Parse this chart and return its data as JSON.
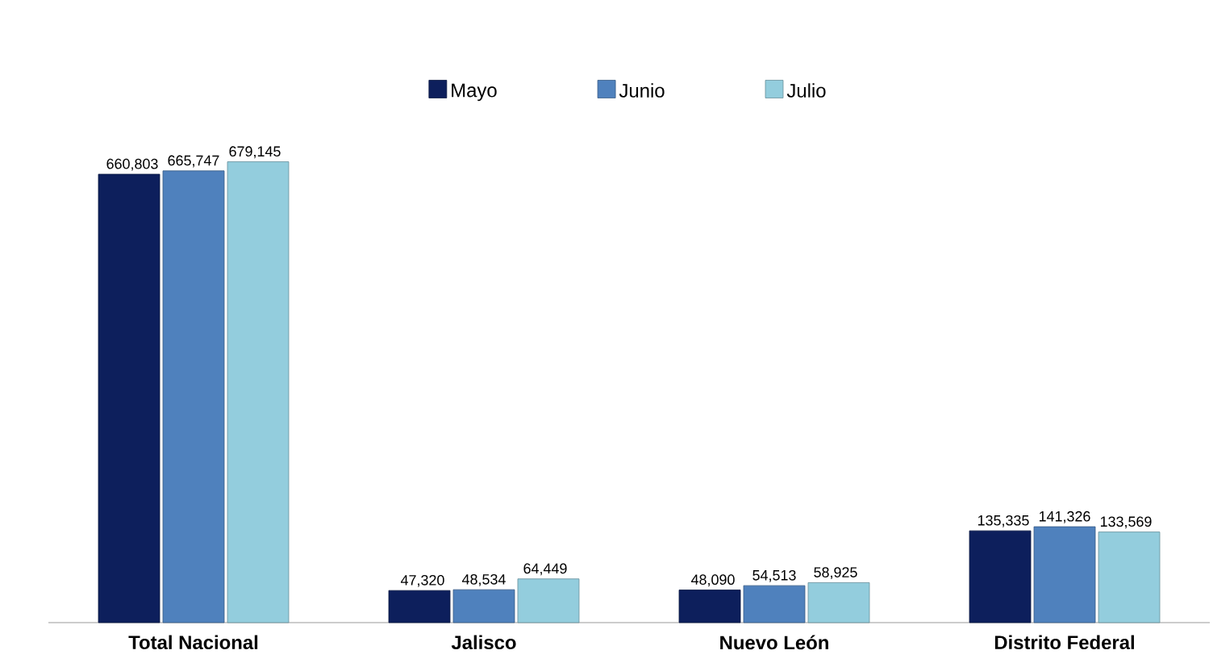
{
  "chart_data": {
    "type": "bar",
    "categories": [
      "Total Nacional",
      "Jalisco",
      "Nuevo León",
      "Distrito Federal"
    ],
    "series": [
      {
        "name": "Mayo",
        "color": "#0d1f5c",
        "values": [
          660803,
          47320,
          48090,
          135335
        ],
        "value_labels": [
          "660,803",
          "47,320",
          "48,090",
          "135,335"
        ]
      },
      {
        "name": "Junio",
        "color": "#4f81bd",
        "values": [
          665747,
          48534,
          54513,
          141326
        ],
        "value_labels": [
          "665,747",
          "48,534",
          "54,513",
          "141,326"
        ]
      },
      {
        "name": "Julio",
        "color": "#93cddd",
        "values": [
          679145,
          64449,
          58925,
          133569
        ],
        "value_labels": [
          "679,145",
          "64,449",
          "58,925",
          "133,569"
        ]
      }
    ],
    "legend": "top"
  }
}
